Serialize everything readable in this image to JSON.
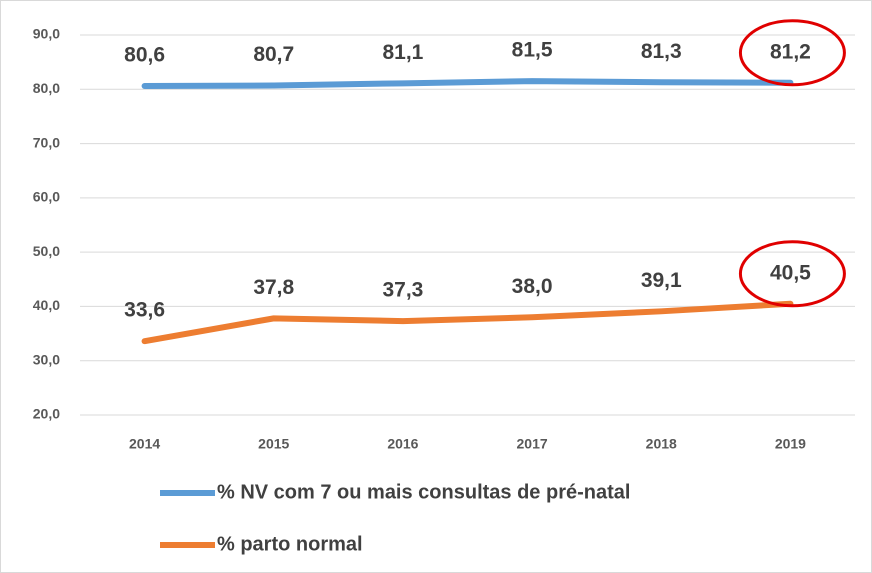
{
  "chart_data": {
    "type": "line",
    "categories": [
      "2014",
      "2015",
      "2016",
      "2017",
      "2018",
      "2019"
    ],
    "series": [
      {
        "name": "% NV com 7 ou mais consultas de pré-natal",
        "color": "#5b9bd5",
        "values": [
          80.6,
          80.7,
          81.1,
          81.5,
          81.3,
          81.2
        ],
        "value_labels": [
          "80,6",
          "80,7",
          "81,1",
          "81,5",
          "81,3",
          "81,2"
        ]
      },
      {
        "name": "% parto normal",
        "color": "#ed7d31",
        "values": [
          33.6,
          37.8,
          37.3,
          38.0,
          39.1,
          40.5
        ],
        "value_labels": [
          "33,6",
          "37,8",
          "37,3",
          "38,0",
          "39,1",
          "40,5"
        ]
      }
    ],
    "ylim": [
      20,
      90
    ],
    "yticks": [
      {
        "value": 20,
        "label": "20,0"
      },
      {
        "value": 30,
        "label": "30,0"
      },
      {
        "value": 40,
        "label": "40,0"
      },
      {
        "value": 50,
        "label": "50,0"
      },
      {
        "value": 60,
        "label": "60,0"
      },
      {
        "value": 70,
        "label": "70,0"
      },
      {
        "value": 80,
        "label": "80,0"
      },
      {
        "value": 90,
        "label": "90,0"
      }
    ],
    "grid": true
  }
}
